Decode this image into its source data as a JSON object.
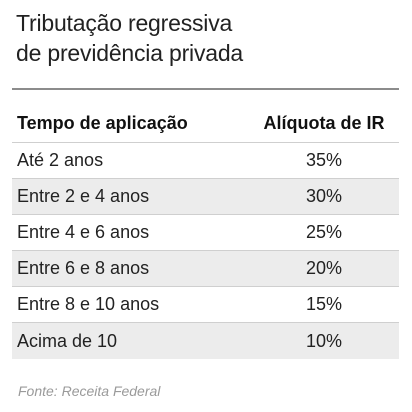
{
  "title": {
    "line1": "Tributação regressiva",
    "line2": "de previdência privada"
  },
  "table": {
    "headers": [
      "Tempo de aplicação",
      "Alíquota de IR"
    ],
    "rows": [
      {
        "period": "Até 2 anos",
        "rate": "35%"
      },
      {
        "period": "Entre 2 e 4 anos",
        "rate": "30%"
      },
      {
        "period": "Entre 4 e 6 anos",
        "rate": "25%"
      },
      {
        "period": "Entre 6 e 8 anos",
        "rate": "20%"
      },
      {
        "period": "Entre 8 e 10 anos",
        "rate": "15%"
      },
      {
        "period": "Acima de 10",
        "rate": "10%"
      }
    ]
  },
  "source": "Fonte: Receita Federal",
  "colors": {
    "alt_row": "#ececec",
    "rule": "#8c8c8c",
    "source_text": "#9a9a9a"
  }
}
